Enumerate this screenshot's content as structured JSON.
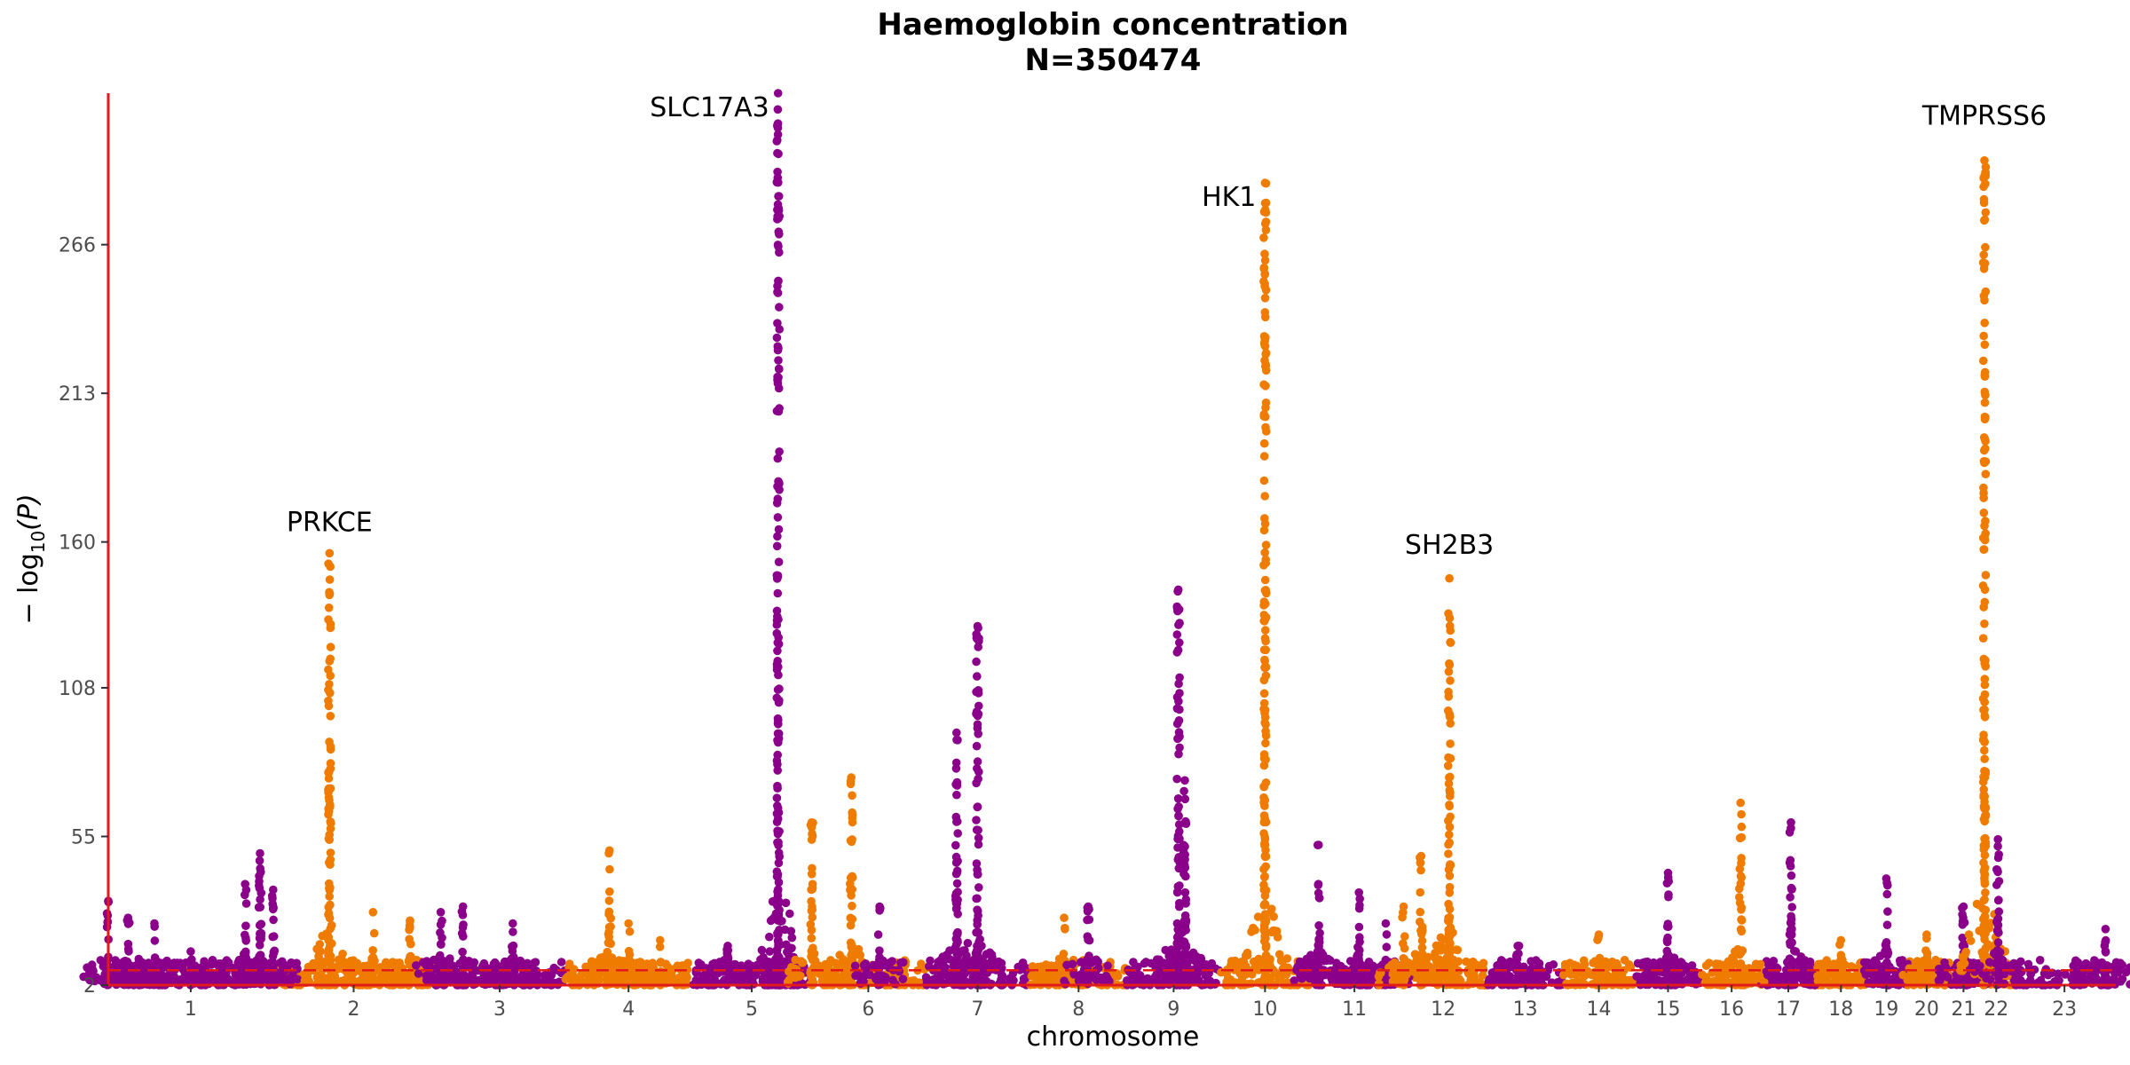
{
  "chart_data": {
    "type": "scatter",
    "title": "Haemoglobin concentration",
    "subtitle": "N=350474",
    "xlabel": "chromosome",
    "ylabel_main": "− log",
    "ylabel_sub": "10",
    "ylabel_tail": "(P)",
    "ylim": [
      2,
      320
    ],
    "yticks": [
      2,
      55,
      108,
      160,
      213,
      266
    ],
    "threshold": 7.3,
    "grid": false,
    "legend": "none",
    "colors": {
      "odd": "#8b008b",
      "even": "#ef7b00",
      "axis": "#e31a1c",
      "threshold": "#e31a1c"
    },
    "chromosomes": [
      {
        "label": "1",
        "len": 249
      },
      {
        "label": "2",
        "len": 243
      },
      {
        "label": "3",
        "len": 198
      },
      {
        "label": "4",
        "len": 191
      },
      {
        "label": "5",
        "len": 181
      },
      {
        "label": "6",
        "len": 171
      },
      {
        "label": "7",
        "len": 159
      },
      {
        "label": "8",
        "len": 146
      },
      {
        "label": "9",
        "len": 141
      },
      {
        "label": "10",
        "len": 135
      },
      {
        "label": "11",
        "len": 135
      },
      {
        "label": "12",
        "len": 133
      },
      {
        "label": "13",
        "len": 115
      },
      {
        "label": "14",
        "len": 107
      },
      {
        "label": "15",
        "len": 102
      },
      {
        "label": "16",
        "len": 90
      },
      {
        "label": "17",
        "len": 81
      },
      {
        "label": "18",
        "len": 78
      },
      {
        "label": "19",
        "len": 59
      },
      {
        "label": "20",
        "len": 63
      },
      {
        "label": "21",
        "len": 48
      },
      {
        "label": "22",
        "len": 51
      },
      {
        "label": "23",
        "len": 155
      }
    ],
    "series": [
      {
        "chr": "1",
        "max": 32,
        "pos": 0.0,
        "col": "odd"
      },
      {
        "chr": "1",
        "max": 26,
        "pos": 0.12,
        "col": "odd"
      },
      {
        "chr": "1",
        "max": 24,
        "pos": 0.28,
        "col": "odd"
      },
      {
        "chr": "1",
        "max": 14,
        "pos": 0.5,
        "col": "odd"
      },
      {
        "chr": "1",
        "max": 38,
        "pos": 0.83,
        "col": "odd"
      },
      {
        "chr": "1",
        "max": 49,
        "pos": 0.92,
        "col": "odd"
      },
      {
        "chr": "1",
        "max": 36,
        "pos": 1.0,
        "col": "odd"
      },
      {
        "chr": "2",
        "max": 156,
        "pos": 0.35,
        "col": "even"
      },
      {
        "chr": "2",
        "max": 28,
        "pos": 0.62,
        "col": "even"
      },
      {
        "chr": "2",
        "max": 25,
        "pos": 0.85,
        "col": "even"
      },
      {
        "chr": "3",
        "max": 28,
        "pos": 0.05,
        "col": "odd"
      },
      {
        "chr": "3",
        "max": 30,
        "pos": 0.22,
        "col": "odd"
      },
      {
        "chr": "3",
        "max": 24,
        "pos": 0.6,
        "col": "odd"
      },
      {
        "chr": "4",
        "max": 50,
        "pos": 0.35,
        "col": "even"
      },
      {
        "chr": "4",
        "max": 24,
        "pos": 0.5,
        "col": "even"
      },
      {
        "chr": "4",
        "max": 18,
        "pos": 0.75,
        "col": "even"
      },
      {
        "chr": "5",
        "max": 16,
        "pos": 0.3,
        "col": "odd"
      },
      {
        "chr": "5",
        "max": 14,
        "pos": 0.65,
        "col": "odd"
      },
      {
        "chr": "5",
        "max": 320,
        "pos": 0.72,
        "col": "odd"
      },
      {
        "chr": "6",
        "max": 60,
        "pos": 0.0,
        "col": "even"
      },
      {
        "chr": "6",
        "max": 76,
        "pos": 0.35,
        "col": "even"
      },
      {
        "chr": "6",
        "max": 30,
        "pos": 0.6,
        "col": "odd"
      },
      {
        "chr": "7",
        "max": 92,
        "pos": 0.3,
        "col": "odd"
      },
      {
        "chr": "7",
        "max": 130,
        "pos": 0.5,
        "col": "odd"
      },
      {
        "chr": "8",
        "max": 26,
        "pos": 0.35,
        "col": "even"
      },
      {
        "chr": "8",
        "max": 30,
        "pos": 0.6,
        "col": "odd"
      },
      {
        "chr": "9",
        "max": 143,
        "pos": 0.55,
        "col": "odd"
      },
      {
        "chr": "9",
        "max": 75,
        "pos": 0.62,
        "col": "odd"
      },
      {
        "chr": "10",
        "max": 288,
        "pos": 0.5,
        "col": "even"
      },
      {
        "chr": "11",
        "max": 52,
        "pos": 0.1,
        "col": "odd"
      },
      {
        "chr": "11",
        "max": 35,
        "pos": 0.55,
        "col": "odd"
      },
      {
        "chr": "11",
        "max": 24,
        "pos": 0.85,
        "col": "odd"
      },
      {
        "chr": "12",
        "max": 30,
        "pos": 0.05,
        "col": "even"
      },
      {
        "chr": "12",
        "max": 48,
        "pos": 0.25,
        "col": "even"
      },
      {
        "chr": "12",
        "max": 147,
        "pos": 0.57,
        "col": "even"
      },
      {
        "chr": "13",
        "max": 16,
        "pos": 0.4,
        "col": "odd"
      },
      {
        "chr": "14",
        "max": 20,
        "pos": 0.5,
        "col": "even"
      },
      {
        "chr": "15",
        "max": 42,
        "pos": 0.5,
        "col": "odd"
      },
      {
        "chr": "16",
        "max": 67,
        "pos": 0.65,
        "col": "even"
      },
      {
        "chr": "17",
        "max": 60,
        "pos": 0.55,
        "col": "odd"
      },
      {
        "chr": "18",
        "max": 18,
        "pos": 0.5,
        "col": "even"
      },
      {
        "chr": "19",
        "max": 40,
        "pos": 0.5,
        "col": "odd"
      },
      {
        "chr": "20",
        "max": 20,
        "pos": 0.5,
        "col": "even"
      },
      {
        "chr": "21",
        "max": 30,
        "pos": 0.5,
        "col": "odd"
      },
      {
        "chr": "22",
        "max": 296,
        "pos": 0.15,
        "col": "even"
      },
      {
        "chr": "22",
        "max": 54,
        "pos": 0.55,
        "col": "odd"
      },
      {
        "chr": "23",
        "max": 22,
        "pos": 0.9,
        "col": "odd"
      }
    ],
    "annotations": [
      {
        "label": "PRKCE",
        "chr": "2",
        "pos": 0.35,
        "y": 160
      },
      {
        "label": "SLC17A3",
        "chr": "5",
        "pos": 0.72,
        "y": 320
      },
      {
        "label": "HK1",
        "chr": "10",
        "pos": 0.5,
        "y": 288
      },
      {
        "label": "SH2B3",
        "chr": "12",
        "pos": 0.57,
        "y": 152
      },
      {
        "label": "TMPRSS6",
        "chr": "22",
        "pos": 0.15,
        "y": 305
      }
    ]
  }
}
